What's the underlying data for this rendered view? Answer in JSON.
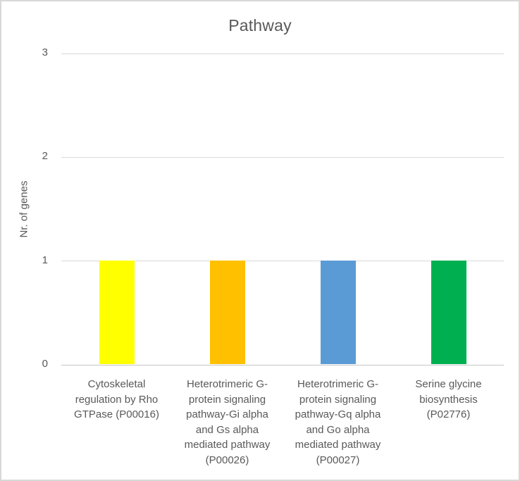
{
  "chart_data": {
    "type": "bar",
    "title": "Pathway",
    "xlabel": "",
    "ylabel": "Nr. of genes",
    "categories": [
      "Cytoskeletal regulation by Rho GTPase (P00016)",
      "Heterotrimeric G-protein signaling pathway-Gi alpha and Gs alpha mediated pathway (P00026)",
      "Heterotrimeric G-protein signaling pathway-Gq alpha and Go alpha mediated pathway (P00027)",
      "Serine glycine biosynthesis (P02776)"
    ],
    "values": [
      1,
      1,
      1,
      1
    ],
    "bar_colors": [
      "#FFFF00",
      "#FFC000",
      "#5B9BD5",
      "#00B050"
    ],
    "ylim": [
      0,
      3
    ],
    "yticks": [
      0,
      1,
      2,
      3
    ],
    "grid": true,
    "legend": false,
    "text_color": "#595959",
    "grid_color": "#D9D9D9",
    "axis_color": "#C6C6C6",
    "border_color": "#D8D8D8"
  }
}
